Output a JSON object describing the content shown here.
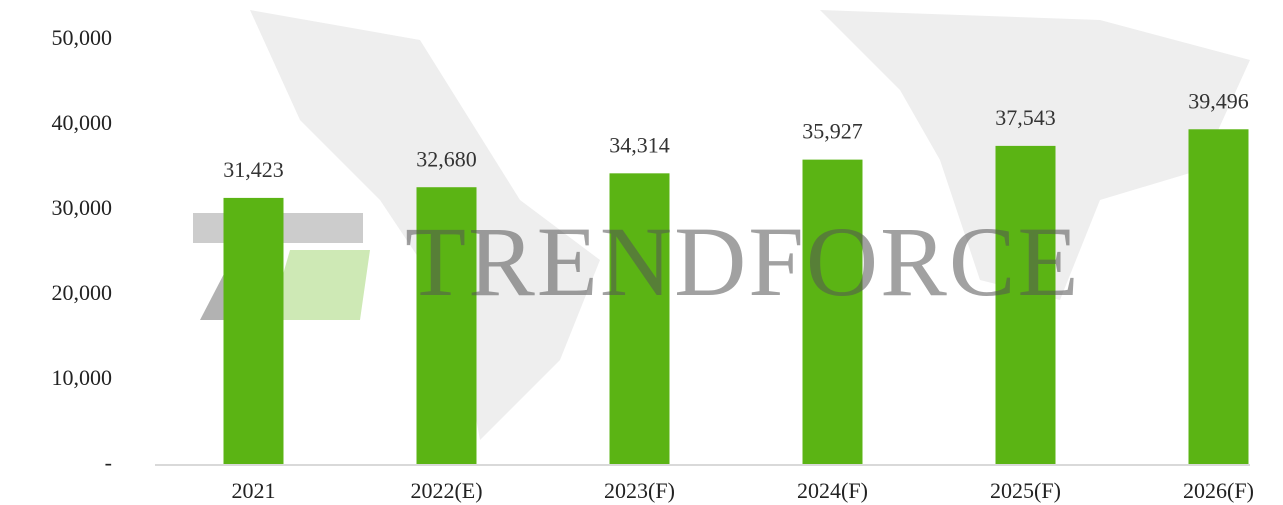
{
  "chart_data": {
    "type": "bar",
    "watermark": "TRENDFORCE",
    "categories": [
      "2021",
      "2022(E)",
      "2023(F)",
      "2024(F)",
      "2025(F)",
      "2026(F)"
    ],
    "values": [
      31423,
      32680,
      34314,
      35927,
      37543,
      39496
    ],
    "value_labels": [
      "31,423",
      "32,680",
      "34,314",
      "35,927",
      "37,543",
      "39,496"
    ],
    "color": "#5bb414",
    "ylim": [
      0,
      50000
    ],
    "yticks": [
      {
        "value": 0,
        "label": "-"
      },
      {
        "value": 10000,
        "label": "10,000"
      },
      {
        "value": 20000,
        "label": "20,000"
      },
      {
        "value": 30000,
        "label": "30,000"
      },
      {
        "value": 40000,
        "label": "40,000"
      },
      {
        "value": 50000,
        "label": "50,000"
      }
    ],
    "grid": false
  }
}
